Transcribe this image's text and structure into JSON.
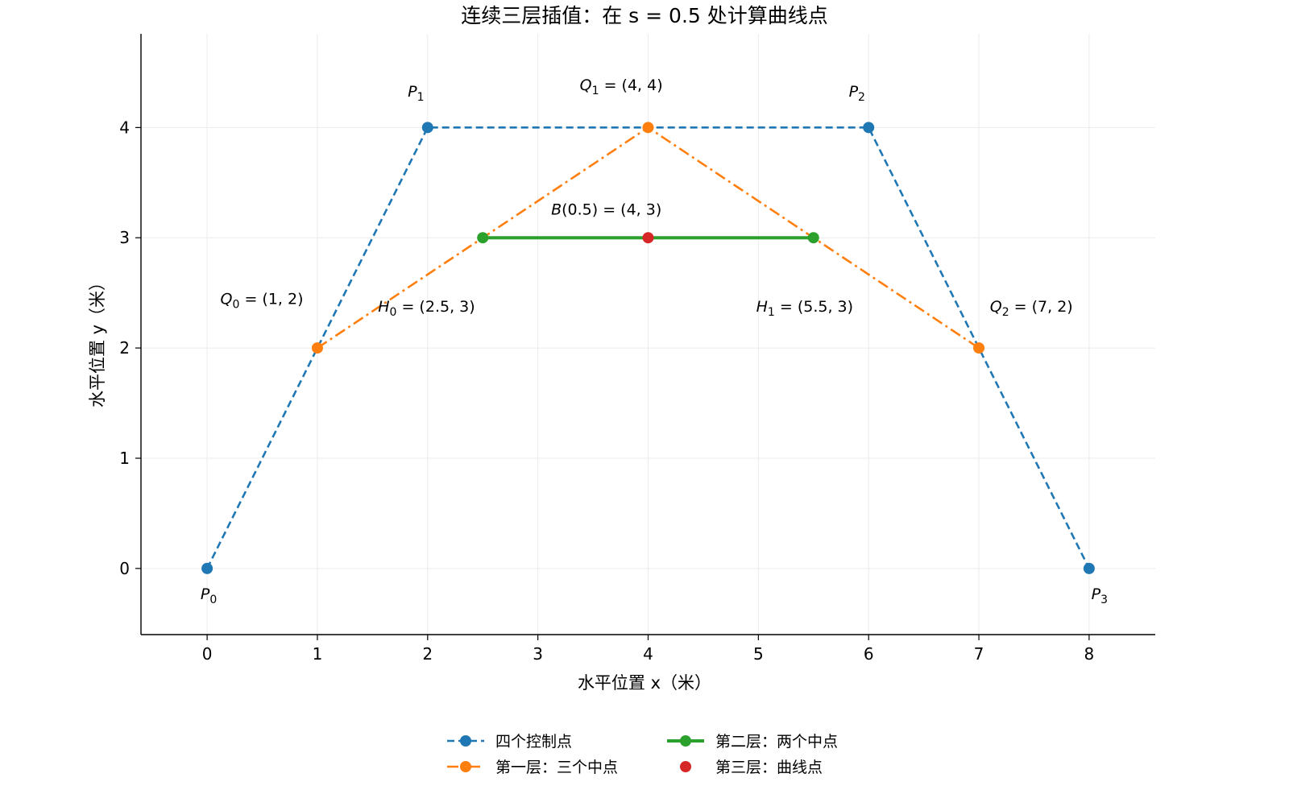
{
  "chart_data": {
    "type": "line",
    "title": "连续三层插值：在 s = 0.5 处计算曲线点",
    "xlabel": "水平位置 x（米）",
    "ylabel": "水平位置 y（米）",
    "xlim": [
      -0.6,
      8.6
    ],
    "ylim": [
      -0.6,
      4.85
    ],
    "xticks": [
      "0",
      "1",
      "2",
      "3",
      "4",
      "5",
      "6",
      "7",
      "8"
    ],
    "yticks": [
      "0",
      "1",
      "2",
      "3",
      "4"
    ],
    "grid": true,
    "legend_position": "bottom-center",
    "series": [
      {
        "name": "四个控制点",
        "color": "#1f77b4",
        "line": "dashed",
        "x": [
          0,
          2,
          6,
          8
        ],
        "y": [
          0,
          4,
          4,
          0
        ]
      },
      {
        "name": "第一层：三个中点",
        "color": "#ff7f0e",
        "line": "dashdot",
        "x": [
          1,
          4,
          7
        ],
        "y": [
          2,
          4,
          2
        ]
      },
      {
        "name": "第二层：两个中点",
        "color": "#2ca02c",
        "line": "solid",
        "x": [
          2.5,
          5.5
        ],
        "y": [
          3,
          3
        ]
      },
      {
        "name": "第三层：曲线点",
        "color": "#d62728",
        "line": "none",
        "x": [
          4
        ],
        "y": [
          3
        ]
      }
    ],
    "annotations": [
      {
        "base": "P",
        "sub": "0",
        "rest": "",
        "x": -0.06,
        "y": -0.28
      },
      {
        "base": "P",
        "sub": "1",
        "rest": "",
        "x": 1.82,
        "y": 4.28
      },
      {
        "base": "P",
        "sub": "2",
        "rest": "",
        "x": 5.82,
        "y": 4.28
      },
      {
        "base": "P",
        "sub": "3",
        "rest": "",
        "x": 8.02,
        "y": -0.28
      },
      {
        "base": "Q",
        "sub": "0",
        "rest": " = (1, 2)",
        "x": 0.12,
        "y": 2.4
      },
      {
        "base": "Q",
        "sub": "1",
        "rest": " = (4, 4)",
        "x": 3.38,
        "y": 4.34
      },
      {
        "base": "Q",
        "sub": "2",
        "rest": " = (7, 2)",
        "x": 7.1,
        "y": 2.33
      },
      {
        "base": "H",
        "sub": "0",
        "rest": " = (2.5, 3)",
        "x": 1.55,
        "y": 2.33
      },
      {
        "base": "H",
        "sub": "1",
        "rest": " = (5.5, 3)",
        "x": 4.98,
        "y": 2.33
      },
      {
        "base": "B",
        "sub": "",
        "rest": "(0.5) = (4, 3)",
        "x": 3.12,
        "y": 3.21
      }
    ]
  }
}
